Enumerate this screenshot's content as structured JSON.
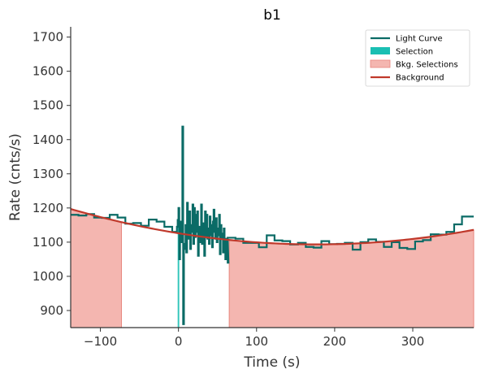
{
  "chart_data": {
    "type": "line",
    "title": "b1",
    "xlabel": "Time (s)",
    "ylabel": "Rate (cnts/s)",
    "xlim": [
      -138,
      378
    ],
    "ylim": [
      850,
      1730
    ],
    "x_ticks": [
      -100,
      0,
      100,
      200,
      300
    ],
    "x_tick_labels": [
      "−100",
      "0",
      "100",
      "200",
      "300"
    ],
    "y_ticks": [
      900,
      1000,
      1100,
      1200,
      1300,
      1400,
      1500,
      1600,
      1700
    ],
    "y_tick_labels": [
      "900",
      "1000",
      "1100",
      "1200",
      "1300",
      "1400",
      "1500",
      "1600",
      "1700"
    ],
    "grid": false,
    "legend_position": "top-right",
    "colors": {
      "light_curve": "#0a6b66",
      "selection": "#1abfb3",
      "bkg_selection_fill": "#f4b6b0",
      "bkg_selection_edge": "#e8867e",
      "background": "#c0392b",
      "axis": "#333333"
    },
    "legend": [
      {
        "label": "Light Curve",
        "kind": "line",
        "color": "#0a6b66"
      },
      {
        "label": "Selection",
        "kind": "patch",
        "color": "#1abfb3"
      },
      {
        "label": "Bkg. Selections",
        "kind": "patch",
        "color": "#f4b6b0"
      },
      {
        "label": "Background",
        "kind": "line",
        "color": "#c0392b"
      }
    ],
    "selection_interval": [
      -1,
      1
    ],
    "bkg_selection_intervals": [
      [
        -138,
        -73
      ],
      [
        65,
        378
      ]
    ],
    "background_fit": {
      "type": "quadratic",
      "x": [
        -138,
        200,
        378
      ],
      "y": [
        1197,
        1094,
        1136
      ]
    },
    "light_curve_coarse": {
      "edges": [
        -138,
        -128,
        -118,
        -108,
        -98,
        -88,
        -78,
        -68,
        -58,
        -48,
        -38,
        -28,
        -18,
        -8,
        -2
      ],
      "values": [
        1180,
        1178,
        1182,
        1172,
        1171,
        1180,
        1172,
        1154,
        1156,
        1148,
        1166,
        1160,
        1145,
        1130
      ]
    },
    "light_curve_fine": {
      "start": -2,
      "step": 1,
      "values": [
        1145,
        1165,
        1200,
        1050,
        1125,
        1160,
        1100,
        1438,
        860,
        1080,
        1095,
        1150,
        1070,
        1215,
        1165,
        1110,
        1190,
        1080,
        1150,
        1130,
        1210,
        1095,
        1200,
        1115,
        1180,
        1130,
        1190,
        1060,
        1125,
        1145,
        1100,
        1210,
        1095,
        1155,
        1120,
        1060,
        1190,
        1115,
        1180,
        1110,
        1140,
        1095,
        1175,
        1120,
        1150,
        1085,
        1160,
        1195,
        1130,
        1110,
        1170,
        1100,
        1140,
        1120,
        1180,
        1065,
        1150,
        1125,
        1110,
        1070,
        1140,
        1090,
        1050,
        1110,
        1100,
        1040
      ]
    },
    "light_curve_tail": {
      "edges": [
        63,
        73,
        83,
        93,
        103,
        113,
        123,
        133,
        143,
        153,
        163,
        173,
        183,
        193,
        203,
        213,
        223,
        233,
        243,
        253,
        263,
        273,
        283,
        293,
        303,
        313,
        323,
        333,
        343,
        353,
        363,
        373,
        378
      ],
      "values": [
        1113,
        1110,
        1098,
        1098,
        1085,
        1120,
        1105,
        1103,
        1093,
        1098,
        1086,
        1084,
        1103,
        1094,
        1095,
        1098,
        1078,
        1100,
        1108,
        1101,
        1086,
        1100,
        1083,
        1080,
        1102,
        1106,
        1123,
        1122,
        1130,
        1152,
        1175,
        1175
      ]
    }
  }
}
